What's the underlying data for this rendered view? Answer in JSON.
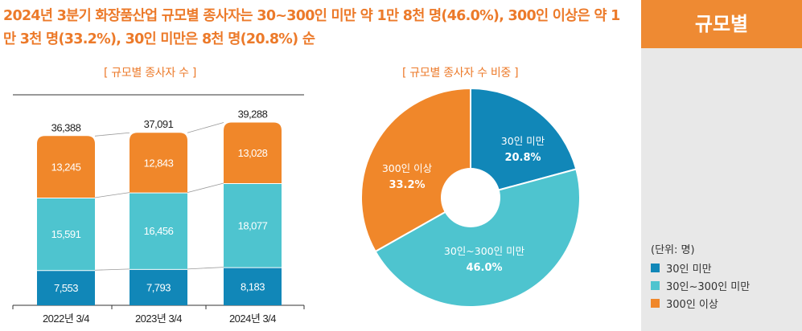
{
  "headline": "2024년 3분기 화장품산업 규모별 종사자는 30~300인 미만 약 1만 8천 명(46.0%), 300인 이상은 약 1만 3천 명(33.2%), 30인 미만은 8천 명(20.8%) 순",
  "sidebar": {
    "title": "규모별",
    "unit": "(단위: 명)"
  },
  "colors": {
    "small": "#1187b8",
    "mid": "#4ec4cf",
    "large": "#f0872a",
    "accent": "#ec7a2a"
  },
  "chart_data": [
    {
      "type": "bar",
      "title": "[ 규모별 종사자 수 ]",
      "stacked": true,
      "categories": [
        "2022년 3/4",
        "2023년 3/4",
        "2024년 3/4"
      ],
      "series": [
        {
          "name": "30인 미만",
          "values": [
            7553,
            7793,
            8183
          ]
        },
        {
          "name": "30인~300인 미만",
          "values": [
            15591,
            16456,
            18077
          ]
        },
        {
          "name": "300인 이상",
          "values": [
            13245,
            12843,
            13028
          ]
        }
      ],
      "totals": [
        36388,
        37091,
        39288
      ],
      "grid": false
    },
    {
      "type": "pie",
      "title": "[ 규모별 종사자 수 비중 ]",
      "donut": true,
      "labels": [
        "30인 미만",
        "30인~300인 미만",
        "300인 이상"
      ],
      "values": [
        20.8,
        46.0,
        33.2
      ],
      "value_labels": [
        "20.8%",
        "46.0%",
        "33.2%"
      ]
    }
  ]
}
